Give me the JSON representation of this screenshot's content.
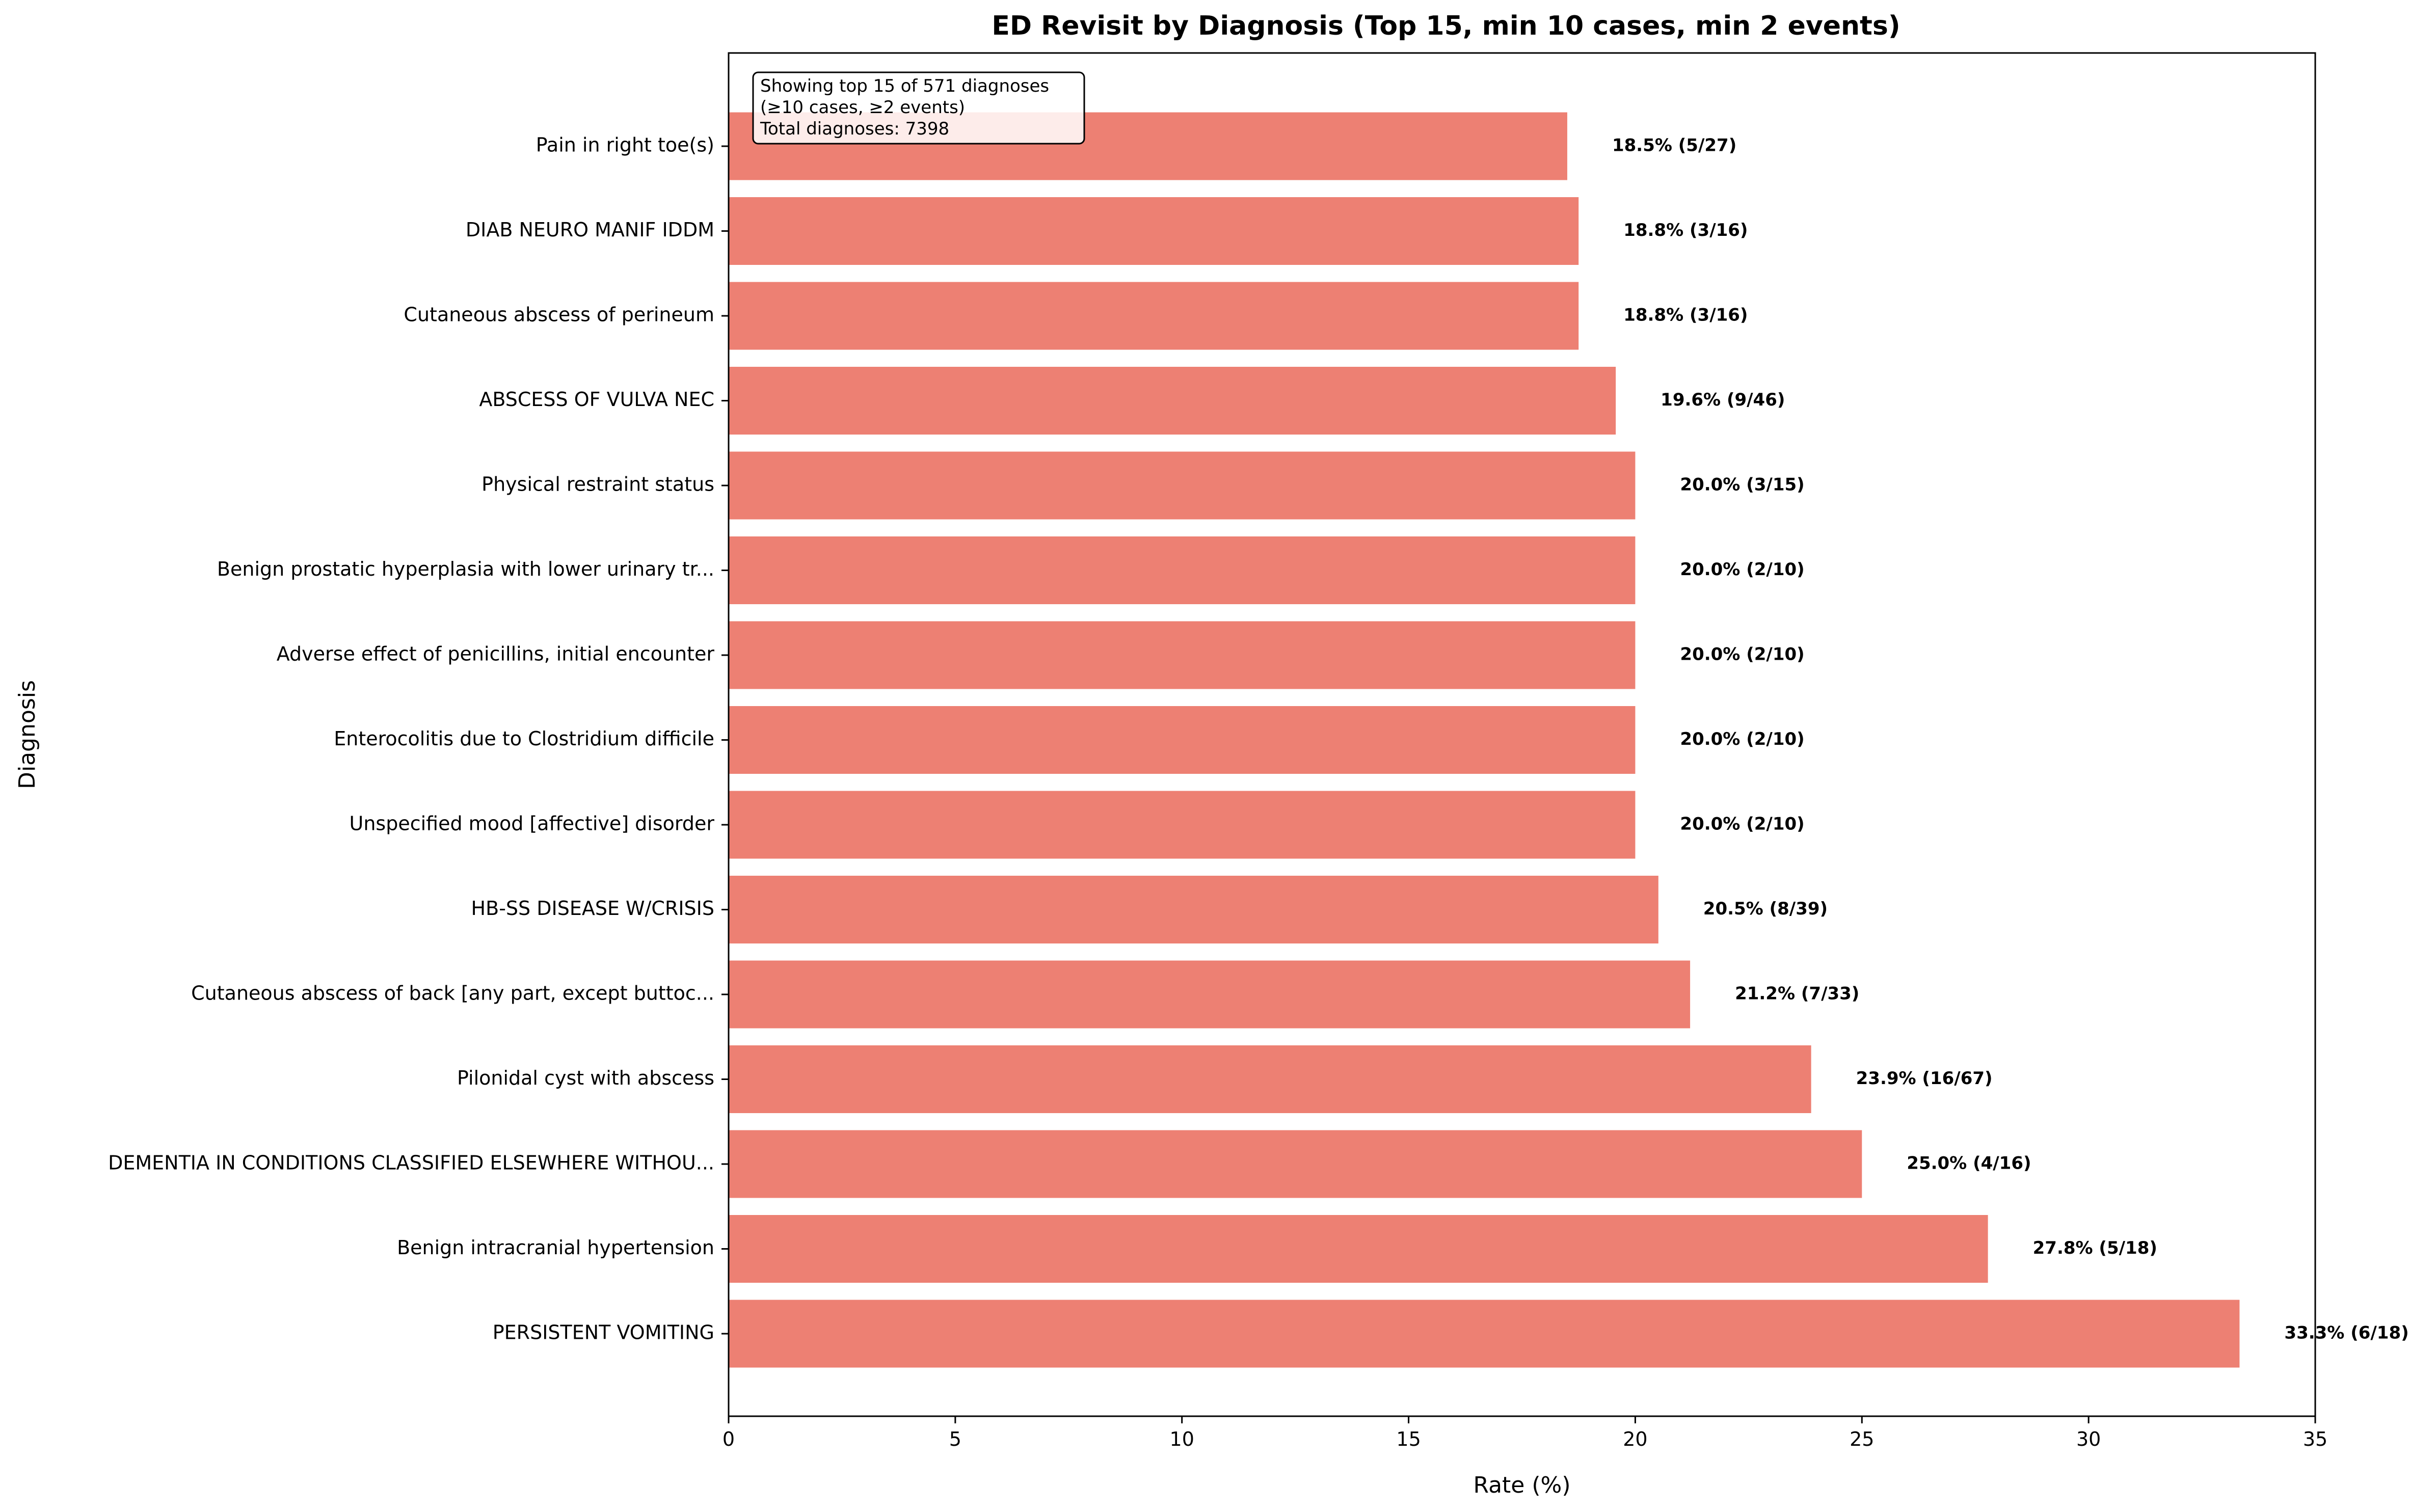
{
  "chart_data": {
    "type": "bar",
    "orientation": "horizontal",
    "title": "ED Revisit by Diagnosis (Top 15, min 10 cases, min 2 events)",
    "xlabel": "Rate (%)",
    "ylabel": "Diagnosis",
    "xlim": [
      0,
      35
    ],
    "xticks": [
      0,
      5,
      10,
      15,
      20,
      25,
      30,
      35
    ],
    "bar_color": "#ed8073",
    "categories": [
      "Pain in right toe(s)",
      "DIAB NEURO MANIF IDDM",
      "Cutaneous abscess of perineum",
      "ABSCESS OF VULVA NEC",
      "Physical restraint status",
      "Benign prostatic hyperplasia with lower urinary tr...",
      "Adverse effect of penicillins, initial encounter",
      "Enterocolitis due to Clostridium difficile",
      "Unspecified mood [affective] disorder",
      "HB-SS DISEASE W/CRISIS",
      "Cutaneous abscess of back [any part, except buttoc...",
      "Pilonidal cyst with abscess",
      "DEMENTIA IN CONDITIONS CLASSIFIED ELSEWHERE WITHOU...",
      "Benign intracranial hypertension",
      "PERSISTENT VOMITING"
    ],
    "values": [
      18.5,
      18.75,
      18.75,
      19.57,
      20.0,
      20.0,
      20.0,
      20.0,
      20.0,
      20.51,
      21.21,
      23.88,
      25.0,
      27.78,
      33.33
    ],
    "data_labels": [
      "18.5% (5/27)",
      "18.8% (3/16)",
      "18.8% (3/16)",
      "19.6% (9/46)",
      "20.0% (3/15)",
      "20.0% (2/10)",
      "20.0% (2/10)",
      "20.0% (2/10)",
      "20.0% (2/10)",
      "20.5% (8/39)",
      "21.2% (7/33)",
      "23.9% (16/67)",
      "25.0% (4/16)",
      "27.8% (5/18)",
      "33.3% (6/18)"
    ],
    "annotation": [
      "Showing top 15 of 571 diagnoses",
      "(≥10 cases, ≥2 events)",
      "Total diagnoses: 7398"
    ]
  }
}
